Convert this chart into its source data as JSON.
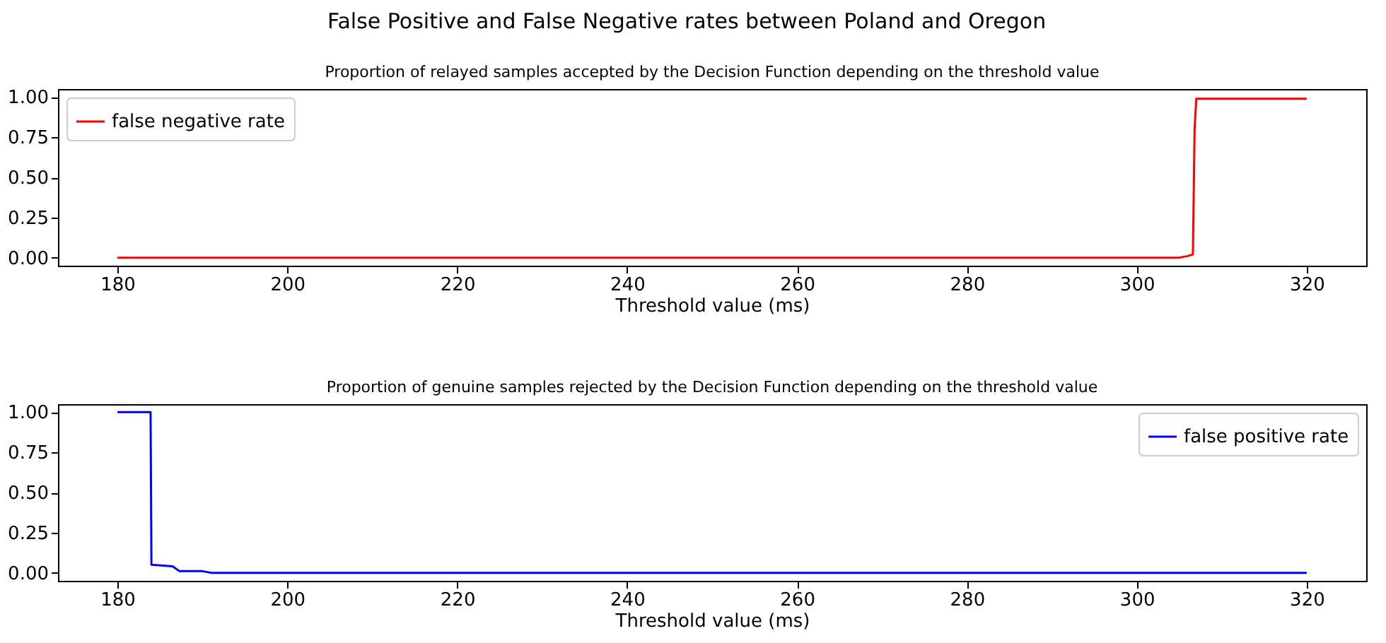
{
  "chart_data": [
    {
      "type": "line",
      "title": "Proportion of relayed samples accepted by the Decision Function depending on the threshold value",
      "xlabel": "Threshold value (ms)",
      "annotations": [
        "False Positive and False Negative rates between Poland and Oregon"
      ],
      "series": [
        {
          "name": "false negative rate",
          "color": "#ff0000",
          "x": [
            180,
            305,
            306,
            306.6,
            306.8,
            307,
            320
          ],
          "values": [
            0,
            0,
            0.01,
            0.02,
            0.8,
            0.99,
            0.99
          ]
        }
      ],
      "xlim": [
        173,
        327
      ],
      "xticks": [
        180,
        200,
        220,
        240,
        260,
        280,
        300,
        320
      ],
      "ylim": [
        -0.05,
        1.05
      ],
      "yticks": [
        {
          "value": 0,
          "label": "0.00"
        },
        {
          "value": 0.25,
          "label": "0.25"
        },
        {
          "value": 0.5,
          "label": "0.50"
        },
        {
          "value": 0.75,
          "label": "0.75"
        },
        {
          "value": 1,
          "label": "1.00"
        }
      ],
      "grid": false,
      "legend": "top left"
    },
    {
      "type": "line",
      "title": "Proportion of genuine samples rejected by the Decision Function depending on the threshold value",
      "xlabel": "Threshold value (ms)",
      "series": [
        {
          "name": "false positive rate",
          "color": "#0000ff",
          "x": [
            180,
            183.9,
            184,
            186.5,
            187.3,
            190,
            191,
            320
          ],
          "values": [
            1,
            1,
            0.05,
            0.04,
            0.01,
            0.01,
            0,
            0
          ]
        }
      ],
      "xlim": [
        173,
        327
      ],
      "xticks": [
        180,
        200,
        220,
        240,
        260,
        280,
        300,
        320
      ],
      "ylim": [
        -0.05,
        1.05
      ],
      "yticks": [
        {
          "value": 0,
          "label": "0.00"
        },
        {
          "value": 0.25,
          "label": "0.25"
        },
        {
          "value": 0.5,
          "label": "0.50"
        },
        {
          "value": 0.75,
          "label": "0.75"
        },
        {
          "value": 1,
          "label": "1.00"
        }
      ],
      "grid": false,
      "legend": "top right"
    }
  ]
}
